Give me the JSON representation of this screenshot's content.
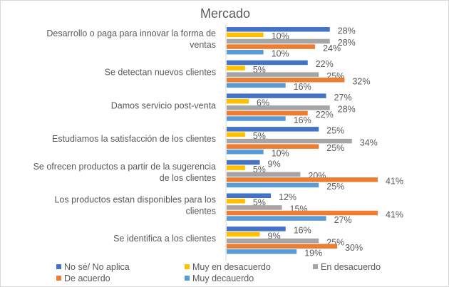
{
  "chart_data": {
    "type": "bar",
    "orientation": "horizontal",
    "title": "Mercado",
    "categories": [
      "Desarrollo o paga para innovar la forma de ventas",
      "Se detectan nuevos clientes",
      "Damos servicio post-venta",
      "Estudiamos la satisfacción de los clientes",
      "Se ofrecen productos a partir de la sugerencia de los clientes",
      "Los productos estan disponibles para los clientes",
      "Se identifica a los clientes"
    ],
    "category_lines": [
      [
        "Desarrollo o paga para innovar la forma de",
        "ventas"
      ],
      [
        "Se detectan nuevos clientes"
      ],
      [
        "Damos servicio post-venta"
      ],
      [
        "Estudiamos la satisfacción de los clientes"
      ],
      [
        "Se ofrecen productos a partir de la sugerencia",
        "de los clientes"
      ],
      [
        "Los productos estan disponibles para los",
        "clientes"
      ],
      [
        "Se identifica a los clientes"
      ]
    ],
    "series": [
      {
        "name": "No sé/ No aplica",
        "color": "#4472C4",
        "values": [
          28,
          22,
          27,
          25,
          9,
          12,
          16
        ]
      },
      {
        "name": "Muy en desacuerdo",
        "color": "#FFC000",
        "values": [
          10,
          5,
          6,
          5,
          5,
          5,
          9
        ]
      },
      {
        "name": "En desacuerdo",
        "color": "#A5A5A5",
        "values": [
          28,
          25,
          28,
          34,
          20,
          15,
          25
        ]
      },
      {
        "name": "De acuerdo",
        "color": "#ED7D31",
        "values": [
          24,
          32,
          22,
          25,
          41,
          41,
          30
        ]
      },
      {
        "name": "Muy decauerdo",
        "color": "#5B9BD5",
        "values": [
          10,
          16,
          16,
          10,
          25,
          27,
          19
        ]
      }
    ],
    "value_suffix": "%",
    "xlim": [
      0,
      45
    ],
    "grid": false,
    "legend_position": "bottom"
  }
}
